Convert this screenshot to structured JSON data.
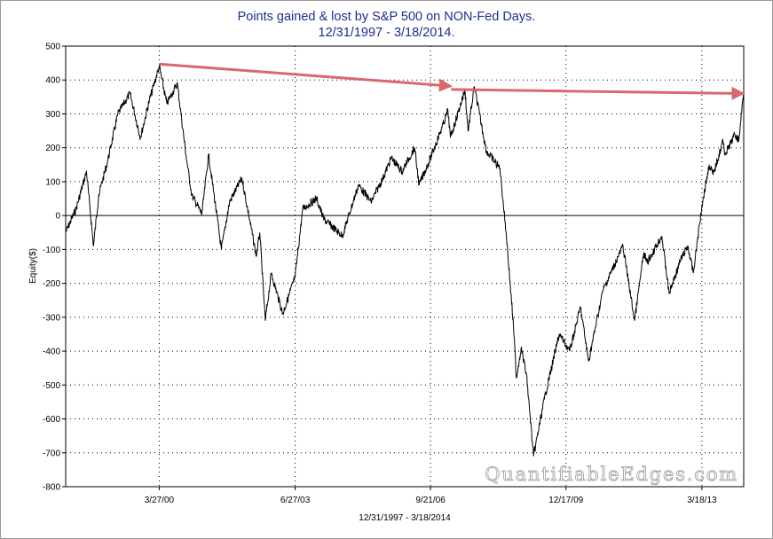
{
  "chart_data": {
    "type": "line",
    "title": "Points gained & lost by S&P 500 on NON-Fed Days.",
    "subtitle": "12/31/1997 - 3/18/2014.",
    "xlabel": "12/31/1997 - 3/18/2014",
    "ylabel": "Equity($)",
    "ylim": [
      -800,
      500
    ],
    "y_ticks": [
      500,
      400,
      300,
      200,
      100,
      0,
      -100,
      -200,
      -300,
      -400,
      -500,
      -600,
      -700,
      -800
    ],
    "x_ticks": [
      "3/27/00",
      "6/27/03",
      "9/21/06",
      "12/17/09",
      "3/18/13"
    ],
    "xlim": [
      "1997-12-31",
      "2014-03-18"
    ],
    "x_tick_dates": [
      "2000-03-27",
      "2003-06-27",
      "2006-09-21",
      "2009-12-17",
      "2013-03-18"
    ],
    "grid": true,
    "legend": "none",
    "watermark": "QuantifiableEdges.com",
    "series": [
      {
        "color": "#000000",
        "x": [
          "1997-12-31",
          "1998-04-01",
          "1998-07-01",
          "1998-08-31",
          "1998-10-15",
          "1999-01-01",
          "1999-04-01",
          "1999-07-15",
          "1999-10-15",
          "2000-01-01",
          "2000-03-27",
          "2000-06-01",
          "2000-09-01",
          "2000-11-15",
          "2001-01-05",
          "2001-04-04",
          "2001-06-01",
          "2001-09-21",
          "2001-12-01",
          "2002-03-19",
          "2002-07-23",
          "2002-08-22",
          "2002-10-09",
          "2002-12-01",
          "2003-03-11",
          "2003-06-27",
          "2003-09-01",
          "2003-12-31",
          "2004-03-01",
          "2004-08-12",
          "2004-12-31",
          "2005-04-20",
          "2005-08-01",
          "2005-10-13",
          "2006-01-15",
          "2006-05-05",
          "2006-06-13",
          "2006-09-21",
          "2006-12-31",
          "2007-02-20",
          "2007-03-14",
          "2007-07-19",
          "2007-08-15",
          "2007-10-09",
          "2008-01-22",
          "2008-05-19",
          "2008-07-15",
          "2008-09-15",
          "2008-10-10",
          "2008-11-20",
          "2009-01-06",
          "2009-03-09",
          "2009-06-12",
          "2009-10-19",
          "2010-01-19",
          "2010-04-23",
          "2010-07-02",
          "2010-11-05",
          "2011-04-29",
          "2011-08-08",
          "2011-10-27",
          "2011-11-25",
          "2012-04-02",
          "2012-06-04",
          "2012-09-14",
          "2012-11-15",
          "2013-01-02",
          "2013-03-18",
          "2013-05-21",
          "2013-06-24",
          "2013-09-18",
          "2013-10-08",
          "2013-12-31",
          "2014-02-03",
          "2014-03-18"
        ],
        "values": [
          -50,
          20,
          130,
          -90,
          60,
          160,
          300,
          360,
          230,
          340,
          440,
          330,
          390,
          180,
          60,
          5,
          180,
          -100,
          40,
          110,
          -120,
          -50,
          -310,
          -170,
          -290,
          -180,
          20,
          50,
          -10,
          -60,
          90,
          40,
          110,
          170,
          130,
          200,
          90,
          170,
          260,
          310,
          230,
          370,
          250,
          380,
          190,
          140,
          -60,
          -330,
          -480,
          -390,
          -470,
          -710,
          -540,
          -350,
          -400,
          -270,
          -430,
          -220,
          -90,
          -310,
          -110,
          -140,
          -60,
          -230,
          -130,
          -90,
          -170,
          30,
          150,
          120,
          220,
          180,
          240,
          220,
          370
        ]
      }
    ],
    "annotations": [
      {
        "type": "arrow",
        "from": [
          "2000-03-27",
          447
        ],
        "to": [
          "2007-03-20",
          382
        ],
        "color": "#d9686d"
      },
      {
        "type": "arrow",
        "from": [
          "2007-03-20",
          372
        ],
        "to": [
          "2014-03-18",
          360
        ],
        "color": "#d9686d"
      }
    ]
  }
}
